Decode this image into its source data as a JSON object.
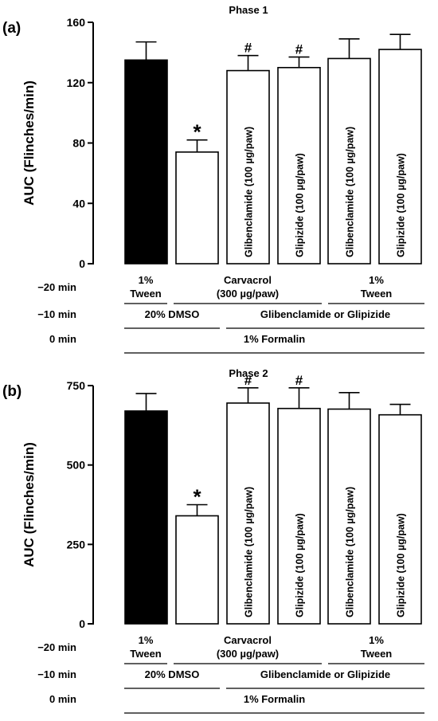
{
  "chart_data": [
    {
      "type": "bar",
      "panel_label": "(a)",
      "title": "Phase 1",
      "ylabel": "AUC (Flinches/min)",
      "ylim": [
        0,
        160
      ],
      "yticks": [
        0,
        40,
        80,
        120,
        160
      ],
      "bars": [
        {
          "value": 135,
          "error": 12,
          "fill": "#000000",
          "inner_label": "",
          "mark": ""
        },
        {
          "value": 74,
          "error": 8,
          "fill": "#ffffff",
          "inner_label": "",
          "mark": "*"
        },
        {
          "value": 128,
          "error": 10,
          "fill": "#ffffff",
          "inner_label": "Glibenclamide (100 µg/paw)",
          "mark": "#"
        },
        {
          "value": 130,
          "error": 7,
          "fill": "#ffffff",
          "inner_label": "Glipizide (100 µg/paw)",
          "mark": "#"
        },
        {
          "value": 136,
          "error": 13,
          "fill": "#ffffff",
          "inner_label": "Glibenclamide (100 µg/paw)",
          "mark": ""
        },
        {
          "value": 142,
          "error": 10,
          "fill": "#ffffff",
          "inner_label": "Glipizide (100 µg/paw)",
          "mark": ""
        }
      ]
    },
    {
      "type": "bar",
      "panel_label": "(b)",
      "title": "Phase 2",
      "ylabel": "AUC (Flinches/min)",
      "ylim": [
        0,
        750
      ],
      "yticks": [
        0,
        250,
        500,
        750
      ],
      "bars": [
        {
          "value": 670,
          "error": 55,
          "fill": "#000000",
          "inner_label": "",
          "mark": ""
        },
        {
          "value": 340,
          "error": 35,
          "fill": "#ffffff",
          "inner_label": "",
          "mark": "*"
        },
        {
          "value": 695,
          "error": 48,
          "fill": "#ffffff",
          "inner_label": "Glibenclamide (100 µg/paw)",
          "mark": "#"
        },
        {
          "value": 678,
          "error": 65,
          "fill": "#ffffff",
          "inner_label": "Glipizide (100 µg/paw)",
          "mark": "#"
        },
        {
          "value": 676,
          "error": 52,
          "fill": "#ffffff",
          "inner_label": "Glibenclamide (100 µg/paw)",
          "mark": ""
        },
        {
          "value": 658,
          "error": 33,
          "fill": "#ffffff",
          "inner_label": "Glipizide (100 µg/paw)",
          "mark": ""
        }
      ]
    }
  ],
  "treatment_table": {
    "rows": [
      {
        "time": "−20 min",
        "groups": [
          {
            "from": 0,
            "to": 0,
            "lines": [
              "1%",
              "Tween"
            ]
          },
          {
            "from": 1,
            "to": 3,
            "lines": [
              "Carvacrol",
              "(300 µg/paw)"
            ]
          },
          {
            "from": 4,
            "to": 5,
            "lines": [
              "1%",
              "Tween"
            ]
          }
        ]
      },
      {
        "time": "−10 min",
        "groups": [
          {
            "from": 0,
            "to": 1,
            "lines": [
              "20% DMSO"
            ]
          },
          {
            "from": 2,
            "to": 5,
            "lines": [
              "Glibenclamide or Glipizide"
            ]
          }
        ]
      },
      {
        "time": "0 min",
        "groups": [
          {
            "from": 0,
            "to": 5,
            "lines": [
              "1% Formalin"
            ]
          }
        ]
      }
    ]
  }
}
